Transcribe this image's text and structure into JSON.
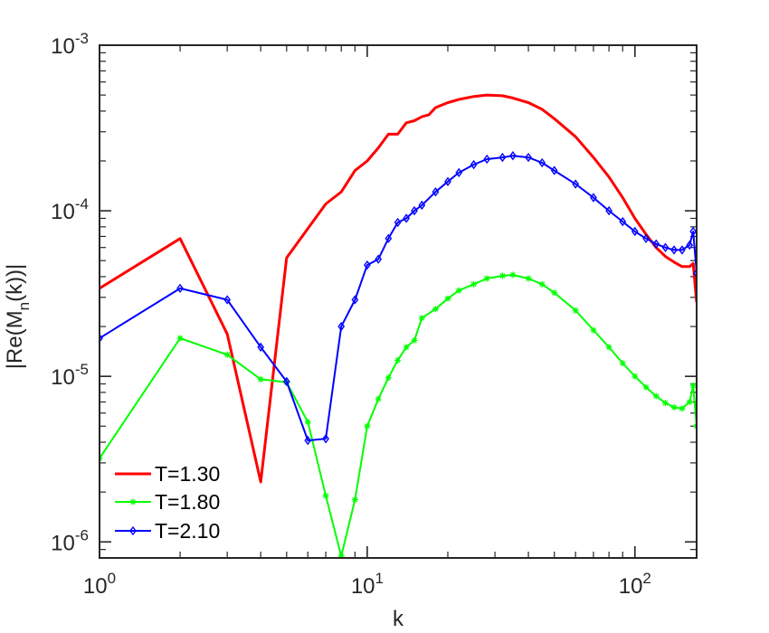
{
  "chart_data": {
    "type": "line",
    "xlabel": "k",
    "ylabel": "|Re(M_n(k))|",
    "xscale": "log",
    "yscale": "log",
    "xlim": [
      1,
      170
    ],
    "ylim": [
      8e-07,
      0.001
    ],
    "grid": false,
    "legend_position": "bottom-left",
    "x_ticks": [
      {
        "value": 1,
        "base": "10",
        "exp": "0"
      },
      {
        "value": 10,
        "base": "10",
        "exp": "1"
      },
      {
        "value": 100,
        "base": "10",
        "exp": "2"
      }
    ],
    "y_ticks": [
      {
        "value": 1e-06,
        "base": "10",
        "exp": "-6"
      },
      {
        "value": 1e-05,
        "base": "10",
        "exp": "-5"
      },
      {
        "value": 0.0001,
        "base": "10",
        "exp": "-4"
      },
      {
        "value": 0.001,
        "base": "10",
        "exp": "-3"
      }
    ],
    "series": [
      {
        "name": "T=1.30",
        "color": "#ff0000",
        "marker": "none",
        "x": [
          1,
          2,
          3,
          4,
          5,
          7,
          8,
          9,
          10,
          11,
          12,
          13,
          14,
          15,
          16,
          17,
          18,
          20,
          22,
          25,
          28,
          32,
          35,
          40,
          45,
          50,
          60,
          70,
          80,
          90,
          100,
          110,
          120,
          130,
          140,
          150,
          160,
          165,
          170
        ],
        "y": [
          3.4e-05,
          6.8e-05,
          1.8e-05,
          2.3e-06,
          5.2e-05,
          0.00011,
          0.00013,
          0.000175,
          0.0002,
          0.00024,
          0.00029,
          0.00029,
          0.00034,
          0.00035,
          0.00037,
          0.00038,
          0.00042,
          0.00045,
          0.00047,
          0.00049,
          0.0005,
          0.000495,
          0.00048,
          0.00045,
          0.00041,
          0.00036,
          0.00028,
          0.00021,
          0.00016,
          0.00012,
          9e-05,
          7.2e-05,
          6e-05,
          5.3e-05,
          4.9e-05,
          4.6e-05,
          4.6e-05,
          4.8e-05,
          2.8e-05
        ]
      },
      {
        "name": "T=1.80",
        "color": "#00ff00",
        "marker": "star",
        "x": [
          1,
          2,
          3,
          4,
          5,
          6,
          7,
          8,
          9,
          10,
          11,
          12,
          13,
          14,
          15,
          16,
          18,
          20,
          22,
          25,
          28,
          32,
          35,
          40,
          45,
          50,
          60,
          70,
          80,
          90,
          100,
          110,
          120,
          130,
          140,
          150,
          160,
          165,
          170
        ],
        "y": [
          3.2e-06,
          1.7e-05,
          1.35e-05,
          9.6e-06,
          9.2e-06,
          5.3e-06,
          1.9e-06,
          8.2e-07,
          1.8e-06,
          5e-06,
          7.3e-06,
          9.8e-06,
          1.25e-05,
          1.5e-05,
          1.65e-05,
          2.25e-05,
          2.55e-05,
          2.95e-05,
          3.3e-05,
          3.6e-05,
          3.9e-05,
          4.05e-05,
          4.1e-05,
          3.9e-05,
          3.6e-05,
          3.2e-05,
          2.5e-05,
          1.9e-05,
          1.5e-05,
          1.2e-05,
          1e-05,
          8.6e-06,
          7.6e-06,
          6.9e-06,
          6.5e-06,
          6.4e-06,
          7e-06,
          8.8e-06,
          5e-06
        ]
      },
      {
        "name": "T=2.10",
        "color": "#0000ff",
        "marker": "diamond",
        "x": [
          1,
          2,
          3,
          4,
          5,
          6,
          7,
          8,
          9,
          10,
          11,
          12,
          13,
          14,
          15,
          16,
          18,
          20,
          22,
          25,
          28,
          32,
          35,
          40,
          45,
          50,
          60,
          70,
          80,
          90,
          100,
          110,
          120,
          130,
          140,
          150,
          160,
          165,
          170
        ],
        "y": [
          1.7e-05,
          3.4e-05,
          2.9e-05,
          1.5e-05,
          9.3e-06,
          4.1e-06,
          4.2e-06,
          2e-05,
          2.9e-05,
          4.7e-05,
          5.1e-05,
          6.8e-05,
          8.5e-05,
          9e-05,
          0.0001,
          0.000108,
          0.00013,
          0.00015,
          0.00017,
          0.00019,
          0.000205,
          0.00021,
          0.000215,
          0.00021,
          0.000195,
          0.000175,
          0.000145,
          0.00012,
          0.0001,
          8.6e-05,
          7.5e-05,
          6.8e-05,
          6.3e-05,
          6e-05,
          5.8e-05,
          5.8e-05,
          6.2e-05,
          7.5e-05,
          4.2e-05
        ]
      }
    ]
  }
}
